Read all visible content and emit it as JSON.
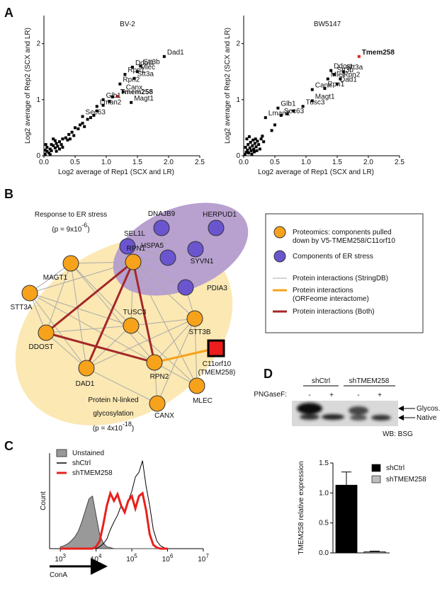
{
  "panel_labels": [
    "A",
    "B",
    "C",
    "D"
  ],
  "chart_data": [
    {
      "type": "scatter",
      "title": "BV-2",
      "x_label": "Log2 average of Rep1 (SCX and LR)",
      "y_label": "Log2 average of Rep2 (SCX and LR)",
      "xlim": [
        0,
        2.5
      ],
      "ylim": [
        0,
        2.5
      ],
      "xticks": [
        {
          "value": 0,
          "label": "0.0"
        },
        0.5,
        {
          "value": 1,
          "label": "1.0"
        },
        1.5,
        {
          "value": 2,
          "label": "2.0"
        },
        2.5
      ],
      "yticks": [
        0,
        1,
        2
      ],
      "color": "#000000",
      "highlight_color": "#e8201c",
      "highlight_index": 8,
      "points": {
        "x": [
          1.93,
          1.55,
          1.42,
          1.5,
          1.3,
          1.45,
          1.22,
          1.27,
          1.18,
          0.95,
          1.4,
          0.85,
          0.62,
          0.02,
          0.05,
          0.08,
          0.1,
          0.12,
          0.15,
          0.18,
          0.2,
          0.22,
          0.25,
          0.28,
          0.3,
          0.05,
          0.12,
          0.18,
          0.1,
          0.2,
          0.3,
          0.35,
          0.38,
          0.4,
          0.45,
          0.48,
          0.5,
          0.55,
          0.58,
          0.62,
          0.65,
          0.7,
          0.75,
          0.8,
          0.85,
          0.95,
          1.05,
          1.1,
          0.03,
          0.15,
          0.25,
          0.42,
          0.02
        ],
        "y": [
          1.77,
          1.6,
          1.58,
          1.5,
          1.45,
          1.38,
          1.28,
          1.14,
          1.06,
          1.0,
          0.95,
          0.88,
          0.7,
          0.03,
          0.08,
          0.05,
          0.12,
          0.09,
          0.18,
          0.14,
          0.22,
          0.17,
          0.25,
          0.2,
          0.3,
          0.15,
          0.2,
          0.27,
          0.02,
          0.08,
          0.15,
          0.32,
          0.28,
          0.38,
          0.42,
          0.36,
          0.5,
          0.48,
          0.55,
          0.58,
          0.52,
          0.65,
          0.68,
          0.72,
          0.8,
          0.9,
          0.97,
          1.05,
          0.2,
          0.3,
          0.12,
          0.3,
          0.1
        ],
        "labels": [
          "Dad1",
          "Stt3b",
          "Ddost",
          "Mlec",
          "Rpn1",
          "Stt3a",
          "Rpn2",
          "Canx",
          "Tmem258",
          "Glb1",
          "Magt1",
          "Lman2",
          "Sec63",
          null,
          null,
          null,
          null,
          null,
          null,
          null,
          null,
          null,
          null,
          null,
          null,
          null,
          null,
          null,
          null,
          null,
          null,
          null,
          null,
          null,
          null,
          null,
          null,
          null,
          null,
          null,
          null,
          null,
          null,
          null,
          null,
          null,
          null,
          null,
          null,
          null,
          null,
          null,
          null
        ]
      }
    },
    {
      "type": "scatter",
      "title": "BW5147",
      "x_label": "Log2 average of Rep1 (SCX and LR)",
      "y_label": "Log2 average of Rep2 (SCX and LR)",
      "xlim": [
        0,
        2.5
      ],
      "ylim": [
        0,
        2.5
      ],
      "xticks": [
        {
          "value": 0,
          "label": "0.0"
        },
        0.5,
        {
          "value": 1,
          "label": "1.0"
        },
        1.5,
        {
          "value": 2,
          "label": "2.0"
        },
        2.5
      ],
      "yticks": [
        0,
        1,
        2
      ],
      "color": "#000000",
      "highlight_color": "#e8201c",
      "highlight_index": 0,
      "points": {
        "x": [
          1.85,
          1.4,
          1.6,
          1.45,
          1.35,
          1.55,
          1.5,
          1.1,
          1.3,
          1.1,
          0.95,
          0.55,
          0.6,
          0.35,
          0.02,
          0.04,
          0.06,
          0.08,
          0.1,
          0.12,
          0.14,
          0.16,
          0.18,
          0.2,
          0.22,
          0.03,
          0.07,
          0.11,
          0.15,
          0.19,
          0.24,
          0.28,
          0.3,
          0.05,
          0.09,
          0.13,
          0.17,
          0.21,
          0.26,
          0.32,
          0.45,
          0.5,
          0.7,
          0.8
        ],
        "y": [
          1.77,
          1.52,
          1.5,
          1.45,
          1.37,
          1.37,
          1.28,
          1.18,
          1.2,
          0.98,
          0.88,
          0.85,
          0.72,
          0.68,
          0.02,
          0.06,
          0.1,
          0.05,
          0.14,
          0.09,
          0.18,
          0.12,
          0.22,
          0.16,
          0.26,
          0.15,
          0.2,
          0.24,
          0.28,
          0.3,
          0.2,
          0.3,
          0.35,
          0.3,
          0.34,
          0.03,
          0.07,
          0.09,
          0.12,
          0.25,
          0.45,
          0.55,
          0.75,
          0.8
        ],
        "labels": [
          "Tmem258",
          "Ddost",
          "Stt3a",
          "Stt3b",
          "Mlec",
          "Rpn2",
          "Dad1",
          "Canx",
          "Rpn1",
          "Magt1",
          "Tusc3",
          "Glb1",
          "Sec63",
          "Lman2",
          null,
          null,
          null,
          null,
          null,
          null,
          null,
          null,
          null,
          null,
          null,
          null,
          null,
          null,
          null,
          null,
          null,
          null,
          null,
          null,
          null,
          null,
          null,
          null,
          null,
          null,
          null,
          null,
          null,
          null
        ]
      }
    },
    {
      "type": "line",
      "x_scale": "log",
      "y_label": "Count",
      "x_label": "ConA",
      "xlim": [
        500,
        10000000
      ],
      "ylim": [
        0,
        100
      ],
      "xticks": [
        {
          "value": 1000,
          "label": "10",
          "exponent": "3"
        },
        {
          "value": 10000,
          "label": "10",
          "exponent": "4"
        },
        {
          "value": 100000,
          "label": "10",
          "exponent": "5"
        },
        {
          "value": 1000000,
          "label": "10",
          "exponent": "6"
        },
        {
          "value": 10000000,
          "label": "10",
          "exponent": "7"
        }
      ],
      "x": [
        1000,
        1259,
        1585,
        1995,
        2512,
        3162,
        3981,
        5012,
        6310,
        7943,
        10000,
        12589,
        15849,
        19953,
        25119,
        31623,
        39811,
        50119,
        63096,
        79433,
        100000,
        125893,
        158489,
        199526,
        251189,
        316228,
        398107,
        501187,
        630957,
        794328,
        1000000
      ],
      "series": [
        {
          "name": "Unstained",
          "color": "#999999",
          "fill": true,
          "values": [
            2,
            3,
            5,
            8,
            12,
            18,
            28,
            40,
            52,
            55,
            35,
            15,
            6,
            2,
            1,
            0,
            0,
            0,
            0,
            0,
            0,
            0,
            0,
            0,
            0,
            0,
            0,
            0,
            0,
            0,
            0
          ]
        },
        {
          "name": "shCtrl",
          "color": "#000000",
          "fill": false,
          "values": [
            0,
            0,
            0,
            0,
            0,
            0,
            0,
            0,
            0,
            0,
            0,
            2,
            5,
            10,
            20,
            28,
            35,
            45,
            40,
            50,
            60,
            75,
            80,
            92,
            65,
            45,
            20,
            8,
            3,
            1,
            0
          ]
        },
        {
          "name": "shTMEM258",
          "color": "#e8201c",
          "fill": false,
          "values": [
            0,
            0,
            0,
            0,
            0,
            0,
            0,
            0,
            0,
            0,
            2,
            8,
            25,
            45,
            58,
            50,
            57,
            45,
            38,
            50,
            55,
            42,
            55,
            58,
            40,
            15,
            4,
            1,
            0,
            0,
            0
          ]
        }
      ]
    },
    {
      "type": "bar",
      "y_label": "TMEM258 relative expression",
      "ylim": [
        0,
        1.5
      ],
      "yticks": [
        {
          "value": 0,
          "label": "0.0"
        },
        0.5,
        {
          "value": 1,
          "label": "1.0"
        },
        1.5
      ],
      "series": [
        {
          "name": "shCtrl",
          "color": "#000000",
          "values": [
            1.13
          ],
          "errors": [
            0.22
          ]
        },
        {
          "name": "shTMEM258",
          "color": "#bdbdbd",
          "values": [
            0.02
          ],
          "errors": [
            0.01
          ]
        }
      ]
    }
  ],
  "network": {
    "er_stress_term": {
      "name": "Response to ER stress",
      "p_prefix": "(p = 9x10",
      "p_exponent": "-6",
      "p_suffix": ")"
    },
    "glyco_term": {
      "name_lines": [
        "Protein N-linked",
        "glycosylation"
      ],
      "p_prefix": "(p = 4x10",
      "p_exponent": "-18",
      "p_suffix": ")"
    },
    "nodes": [
      {
        "label": "DNAJB9",
        "color": "#6a55cf"
      },
      {
        "label": "HERPUD1",
        "color": "#6a55cf"
      },
      {
        "label": "SEL1L",
        "color": "#6a55cf"
      },
      {
        "label": "HSPA5",
        "color": "#6a55cf"
      },
      {
        "label": "SYVN1",
        "color": "#6a55cf"
      },
      {
        "label": "PDIA3",
        "color": "#6a55cf"
      },
      {
        "label": "MAGT1",
        "color": "#f7a21b"
      },
      {
        "label": "RPN1",
        "color": "#f7a21b"
      },
      {
        "label": "STT3A",
        "color": "#f7a21b"
      },
      {
        "label": "TUSC3",
        "color": "#f7a21b"
      },
      {
        "label": "STT3B",
        "color": "#f7a21b"
      },
      {
        "label": "DDOST",
        "color": "#f7a21b"
      },
      {
        "label": "RPN2",
        "color": "#f7a21b"
      },
      {
        "label": "DAD1",
        "color": "#f7a21b"
      },
      {
        "label": "MLEC",
        "color": "#f7a21b"
      },
      {
        "label": "CANX",
        "color": "#f7a21b"
      },
      {
        "label": "C11orf10",
        "sublabel": "(TMEM258)",
        "color": "#ee1c1c"
      }
    ],
    "legend": [
      {
        "lines": [
          "Proteomics: components pulled",
          "down by V5-TMEM258/C11orf10"
        ],
        "marker": "circle",
        "color": "#f7a21b"
      },
      {
        "lines": [
          "Components of ER stress"
        ],
        "marker": "circle",
        "color": "#6a55cf"
      },
      {
        "lines": [
          "Protein interactions (StringDB)"
        ],
        "marker": "line",
        "color": "#aaaaaa"
      },
      {
        "lines": [
          "Protein interactions",
          "(ORFeome interactome)"
        ],
        "marker": "line",
        "color": "#f7a21b"
      },
      {
        "lines": [
          "Protein interactions (Both)"
        ],
        "marker": "line",
        "color": "#a3282a"
      }
    ]
  },
  "blot": {
    "groups": [
      "shCtrl",
      "shTMEM258"
    ],
    "treatment_label": "PNGaseF:",
    "treatments": [
      "-",
      "+",
      "-",
      "+"
    ],
    "band_labels": [
      "Glycos.",
      "Native"
    ],
    "antibody": "WB: BSG"
  }
}
